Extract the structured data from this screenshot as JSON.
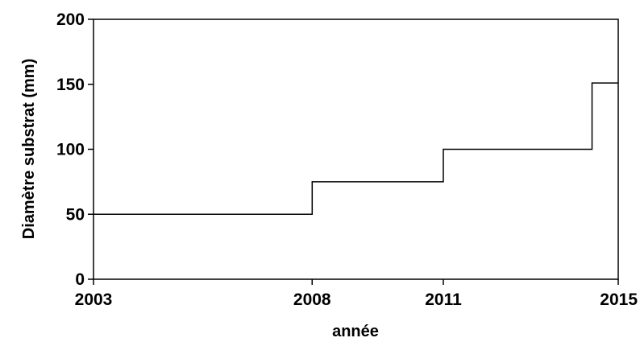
{
  "chart_data": {
    "type": "line",
    "step": true,
    "xlabel": "année",
    "ylabel": "Diamètre substrat (mm)",
    "xlim": [
      2003,
      2015
    ],
    "ylim": [
      0,
      200
    ],
    "x_ticks": [
      2003,
      2008,
      2011,
      2015
    ],
    "y_ticks": [
      0,
      50,
      100,
      150,
      200
    ],
    "x_tick_labels": [
      "2003",
      "2008",
      "2011",
      "2015"
    ],
    "y_tick_labels": [
      "0",
      "50",
      "100",
      "150",
      "200"
    ],
    "grid": false,
    "series": [
      {
        "x": [
          2003,
          2008,
          2008,
          2011,
          2011,
          2014.4,
          2014.4,
          2015
        ],
        "y": [
          50,
          50,
          75,
          75,
          100,
          100,
          151,
          151
        ]
      }
    ]
  }
}
